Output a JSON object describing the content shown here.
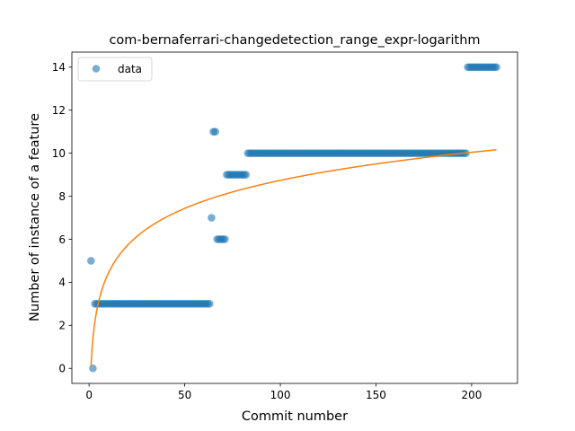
{
  "chart_data": {
    "type": "scatter",
    "title": "com-bernaferrari-changedetection_range_expr-logarithm",
    "xlabel": "Commit number",
    "ylabel": "Number of instance of a feature",
    "xlim": [
      -9,
      224
    ],
    "ylim": [
      -0.7,
      14.7
    ],
    "xticks": [
      0,
      50,
      100,
      150,
      200
    ],
    "yticks": [
      0,
      2,
      4,
      6,
      8,
      10,
      12,
      14
    ],
    "grid": false,
    "legend": {
      "position": "top-left",
      "entries": [
        "data"
      ]
    },
    "colors": {
      "points": "#1f77b4",
      "fit": "#ff7f0e"
    },
    "series": [
      {
        "name": "data",
        "kind": "scatter",
        "segments": [
          {
            "x_start": 1,
            "x_end": 1,
            "y": 5
          },
          {
            "x_start": 2,
            "x_end": 2,
            "y": 0
          },
          {
            "x_start": 3,
            "x_end": 63,
            "y": 3
          },
          {
            "x_start": 64,
            "x_end": 64,
            "y": 7
          },
          {
            "x_start": 65,
            "x_end": 66,
            "y": 11
          },
          {
            "x_start": 67,
            "x_end": 71,
            "y": 6
          },
          {
            "x_start": 72,
            "x_end": 82,
            "y": 9
          },
          {
            "x_start": 83,
            "x_end": 197,
            "y": 10
          },
          {
            "x_start": 198,
            "x_end": 213,
            "y": 14
          }
        ]
      },
      {
        "name": "",
        "kind": "line",
        "model": "y = a + b*ln(x)",
        "a": 0.08,
        "b": 1.88,
        "x_range": [
          1,
          213
        ]
      }
    ]
  }
}
